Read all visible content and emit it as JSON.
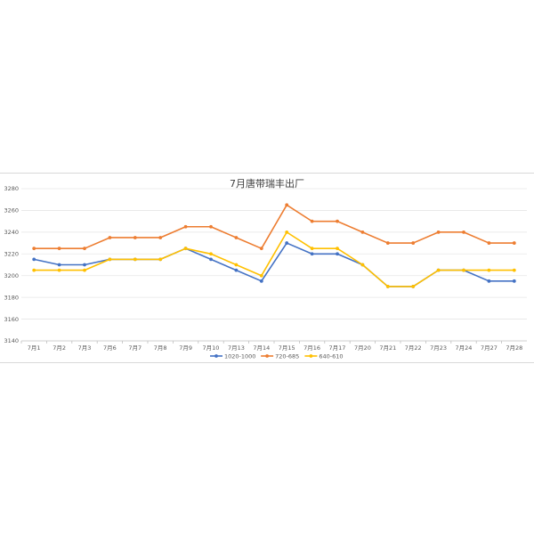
{
  "chart_data": {
    "type": "line",
    "title": "7月唐带瑞丰出厂",
    "xlabel": "",
    "ylabel": "",
    "ylim": [
      3140,
      3280
    ],
    "yticks": [
      3140,
      3160,
      3180,
      3200,
      3220,
      3240,
      3260,
      3280
    ],
    "grid": true,
    "legend_position": "bottom",
    "categories": [
      "7月1",
      "7月2",
      "7月3",
      "7月6",
      "7月7",
      "7月8",
      "7月9",
      "7月10",
      "7月13",
      "7月14",
      "7月15",
      "7月16",
      "7月17",
      "7月20",
      "7月21",
      "7月22",
      "7月23",
      "7月24",
      "7月27",
      "7月28"
    ],
    "series": [
      {
        "name": "1020-1000",
        "color": "#4472c4",
        "values": [
          3215,
          3210,
          3210,
          3215,
          3215,
          3215,
          3225,
          3215,
          3205,
          3195,
          3230,
          3220,
          3220,
          3210,
          3190,
          3190,
          3205,
          3205,
          3195,
          3195
        ]
      },
      {
        "name": "720-685",
        "color": "#ed7d31",
        "values": [
          3225,
          3225,
          3225,
          3235,
          3235,
          3235,
          3245,
          3245,
          3235,
          3225,
          3265,
          3250,
          3250,
          3240,
          3230,
          3230,
          3240,
          3240,
          3230,
          3230
        ]
      },
      {
        "name": "640-610",
        "color": "#ffc000",
        "values": [
          3205,
          3205,
          3205,
          3215,
          3215,
          3215,
          3225,
          3220,
          3210,
          3200,
          3240,
          3225,
          3225,
          3210,
          3190,
          3190,
          3205,
          3205,
          3205,
          3205
        ]
      }
    ]
  }
}
